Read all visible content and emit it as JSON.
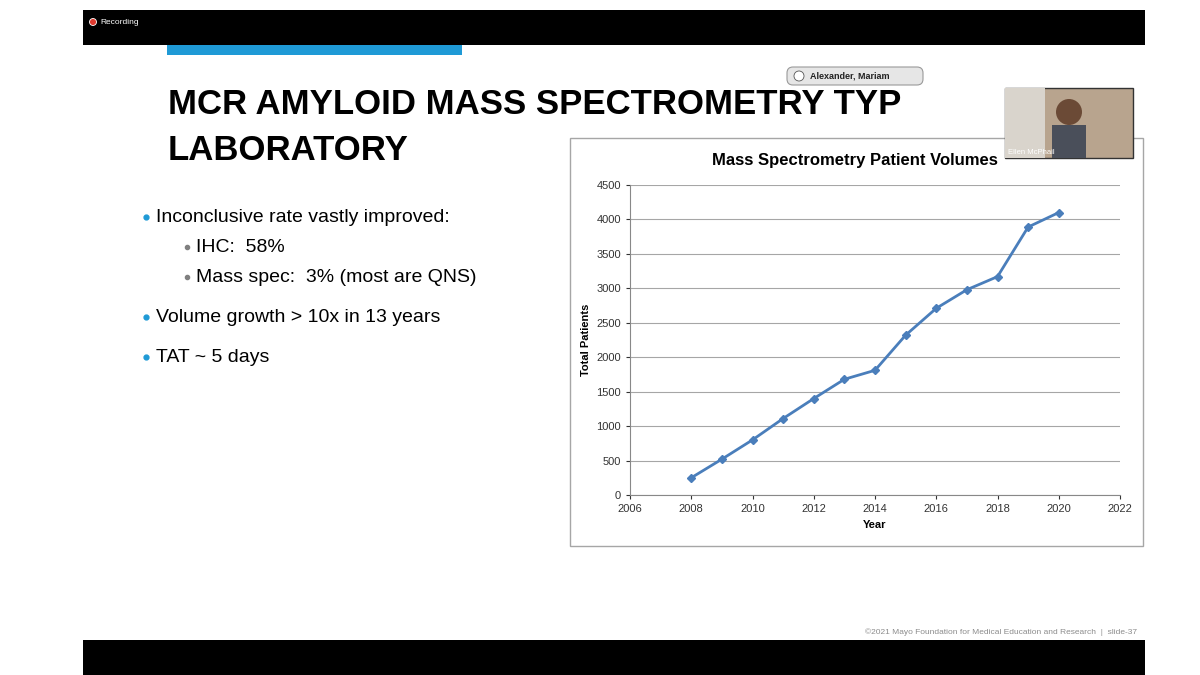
{
  "recording": "Recording",
  "participants": {
    "speaker_label": "Alexander, Mariam",
    "video_name": "Ellen McPhail"
  },
  "slide": {
    "title": [
      "MCR AMYLOID MASS SPECTROMETRY TYP",
      "LABORATORY"
    ],
    "bullets": [
      {
        "text": "Inconclusive rate vastly improved:",
        "sub": [
          "IHC:  58%",
          "Mass spec:  3% (most are QNS)"
        ]
      },
      {
        "text": "Volume growth > 10x in 13 years"
      },
      {
        "text": "TAT ~ 5 days"
      }
    ],
    "footer": "©2021 Mayo Foundation for Medical Education and Research  |  slide-37"
  },
  "chart_data": {
    "type": "line",
    "title": "Mass Spectrometry Patient Volumes",
    "x_label": "Year",
    "y_label": "Total Patients",
    "x": [
      2008,
      2009,
      2010,
      2011,
      2012,
      2013,
      2014,
      2015,
      2016,
      2017,
      2018,
      2019,
      2020
    ],
    "values": [
      250,
      520,
      800,
      1110,
      1400,
      1680,
      1810,
      2320,
      2710,
      2980,
      3170,
      3890,
      4100
    ],
    "color": "#4a7ebb",
    "marker": "diamond",
    "line_style": "solid",
    "xlim": [
      2006,
      2022
    ],
    "xticks": [
      2006,
      2008,
      2010,
      2012,
      2014,
      2016,
      2018,
      2020,
      2022
    ],
    "ylim": [
      0,
      4500
    ],
    "yticks": [
      0,
      500,
      1000,
      1500,
      2000,
      2500,
      3000,
      3500,
      4000,
      4500
    ],
    "grid": true
  }
}
